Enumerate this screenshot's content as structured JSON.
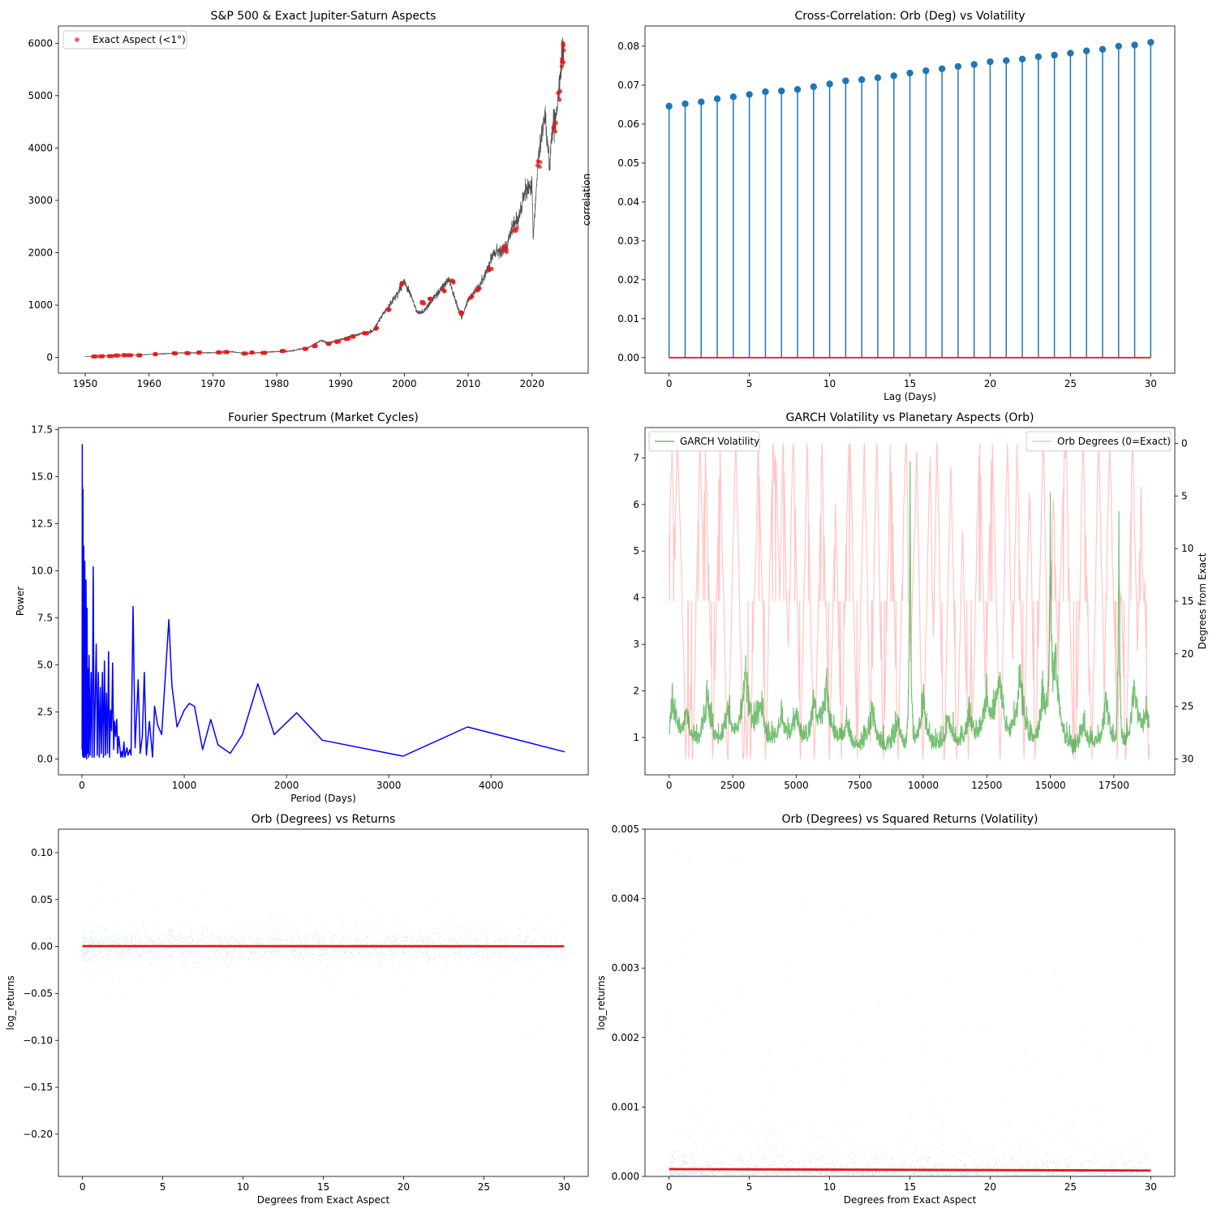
{
  "chart_data": [
    {
      "type": "scatter",
      "title": "S&P 500 & Exact Jupiter-Saturn Aspects",
      "xlabel": "",
      "ylabel": "",
      "xlim": [
        1945.8,
        2028.8
      ],
      "ylim": [
        -300,
        6330
      ],
      "xticks": [
        1950,
        1960,
        1970,
        1980,
        1990,
        2000,
        2010,
        2020
      ],
      "yticks": [
        0,
        1000,
        2000,
        3000,
        4000,
        5000,
        6000
      ],
      "legend": "upper-left",
      "line_series": {
        "name": "",
        "color": "#333333",
        "x": [
          1950,
          1955,
          1960,
          1965,
          1970,
          1973,
          1975,
          1980,
          1982,
          1985,
          1987,
          1988,
          1990,
          1992,
          1995,
          1997,
          1998,
          2000,
          2001,
          2002,
          2003,
          2005,
          2007,
          2008,
          2009,
          2010,
          2012,
          2013,
          2014,
          2015,
          2016,
          2017,
          2018,
          2019,
          2020,
          2020.2,
          2021,
          2022,
          2022.8,
          2023,
          2024,
          2024.5,
          2025
        ],
        "y": [
          17,
          40,
          58,
          88,
          90,
          110,
          75,
          115,
          120,
          190,
          330,
          270,
          340,
          420,
          500,
          900,
          1050,
          1450,
          1200,
          850,
          880,
          1200,
          1500,
          1100,
          750,
          1120,
          1400,
          1700,
          2000,
          2050,
          2100,
          2500,
          2700,
          3200,
          3300,
          2300,
          3800,
          4700,
          3600,
          4200,
          4800,
          5500,
          6000
        ]
      },
      "scatter_series": {
        "name": "Exact Aspect (<1°)",
        "color": "#e31a1c",
        "x": [
          1951.5,
          1952.5,
          1954,
          1955,
          1956,
          1957,
          1958.5,
          1961,
          1964,
          1966,
          1968,
          1971,
          1972,
          1975,
          1976,
          1978,
          1981,
          1984.5,
          1986,
          1988,
          1989.5,
          1991,
          1992,
          1994,
          1995.5,
          1997.5,
          1999.5,
          2003,
          2004,
          2006,
          2007.5,
          2009,
          2010.5,
          2011.5,
          2013.5,
          2015.5,
          2016,
          2017.5,
          2021,
          2023.5,
          2024.2,
          2024.8,
          2025
        ],
        "y": [
          20,
          24,
          26,
          38,
          45,
          44,
          42,
          65,
          80,
          85,
          95,
          98,
          105,
          75,
          95,
          90,
          125,
          165,
          220,
          260,
          300,
          360,
          400,
          460,
          560,
          900,
          1400,
          1050,
          1120,
          1270,
          1450,
          850,
          1150,
          1300,
          1700,
          2100,
          2050,
          2450,
          3700,
          4400,
          5000,
          5600,
          5950
        ]
      }
    },
    {
      "type": "stem",
      "title": "Cross-Correlation: Orb (Deg) vs Volatility",
      "xlabel": "Lag (Days)",
      "ylabel": "correlation",
      "xlim": [
        -1.5,
        31.5
      ],
      "ylim": [
        -0.004,
        0.0852
      ],
      "xticks": [
        0,
        5,
        10,
        15,
        20,
        25,
        30
      ],
      "yticks": [
        0.0,
        0.01,
        0.02,
        0.03,
        0.04,
        0.05,
        0.06,
        0.07,
        0.08
      ],
      "ytick_labels": [
        "0.00",
        "0.01",
        "0.02",
        "0.03",
        "0.04",
        "0.05",
        "0.06",
        "0.07",
        "0.08"
      ],
      "x": [
        0,
        1,
        2,
        3,
        4,
        5,
        6,
        7,
        8,
        9,
        10,
        11,
        12,
        13,
        14,
        15,
        16,
        17,
        18,
        19,
        20,
        21,
        22,
        23,
        24,
        25,
        26,
        27,
        28,
        29,
        30
      ],
      "values": [
        0.0646,
        0.0652,
        0.0657,
        0.0665,
        0.067,
        0.0676,
        0.0683,
        0.0685,
        0.0689,
        0.0696,
        0.0703,
        0.0711,
        0.0714,
        0.0719,
        0.0724,
        0.0731,
        0.0737,
        0.0742,
        0.0748,
        0.0753,
        0.076,
        0.0763,
        0.0767,
        0.0773,
        0.0777,
        0.0782,
        0.0788,
        0.0792,
        0.08,
        0.0803,
        0.081
      ],
      "stem_color": "#1f77b4",
      "baseline_color": "#d62728"
    },
    {
      "type": "line",
      "title": "Fourier Spectrum (Market Cycles)",
      "xlabel": "Period (Days)",
      "ylabel": "Power",
      "xlim": [
        -230,
        4950
      ],
      "ylim": [
        -0.84,
        17.6
      ],
      "xticks": [
        0,
        1000,
        2000,
        3000,
        4000
      ],
      "yticks": [
        0.0,
        2.5,
        5.0,
        7.5,
        10.0,
        12.5,
        15.0,
        17.5
      ],
      "ytick_labels": [
        "0.0",
        "2.5",
        "5.0",
        "7.5",
        "10.0",
        "12.5",
        "15.0",
        "17.5"
      ],
      "color": "#0000ff",
      "x": [
        2,
        3,
        4,
        5,
        6,
        7,
        8,
        10,
        12,
        14,
        16,
        18,
        20,
        22,
        25,
        28,
        30,
        33,
        36,
        40,
        45,
        50,
        55,
        60,
        65,
        70,
        80,
        90,
        100,
        110,
        120,
        130,
        140,
        150,
        160,
        170,
        180,
        190,
        200,
        210,
        220,
        230,
        240,
        250,
        260,
        270,
        280,
        290,
        300,
        310,
        320,
        330,
        340,
        350,
        360,
        380,
        390,
        400,
        410,
        420,
        440,
        450,
        470,
        480,
        500,
        520,
        550,
        570,
        590,
        610,
        630,
        660,
        690,
        710,
        740,
        780,
        850,
        880,
        930,
        1000,
        1050,
        1100,
        1180,
        1260,
        1330,
        1450,
        1570,
        1720,
        1880,
        2100,
        2350,
        3140,
        3770,
        4720
      ],
      "y": [
        0.5,
        16.7,
        1.0,
        14.5,
        0.2,
        12.0,
        1.0,
        14.3,
        0.1,
        9.5,
        0.5,
        11.3,
        0.1,
        7.8,
        0.3,
        10.5,
        0.1,
        5.0,
        0.2,
        9.5,
        0.0,
        8.0,
        0.3,
        4.8,
        0.1,
        5.5,
        0.2,
        4.6,
        0.1,
        10.2,
        0.1,
        3.2,
        6.1,
        0.2,
        4.6,
        0.1,
        3.8,
        0.3,
        4.6,
        0.1,
        5.2,
        0.2,
        3.5,
        0.3,
        5.7,
        0.1,
        2.6,
        1.5,
        5.1,
        0.5,
        2.0,
        1.2,
        2.1,
        0.3,
        1.2,
        0.1,
        0.4,
        0.1,
        0.9,
        0.1,
        0.6,
        0.2,
        0.5,
        0.2,
        8.1,
        0.6,
        4.2,
        0.3,
        1.2,
        4.6,
        0.2,
        2.0,
        0.1,
        2.8,
        1.8,
        1.3,
        7.4,
        3.9,
        1.7,
        2.6,
        2.95,
        2.8,
        0.5,
        2.1,
        0.75,
        0.3,
        1.3,
        4.0,
        1.3,
        2.45,
        1.0,
        0.15,
        1.7,
        0.38
      ]
    },
    {
      "type": "line",
      "title": "GARCH Volatility vs Planetary Aspects (Orb)",
      "xlabel": "",
      "ylabel": "",
      "ylabel_right": "Degrees from Exact",
      "xlim": [
        -950,
        19900
      ],
      "ylim": [
        0.2,
        7.65
      ],
      "ylim_right": [
        31.5,
        -1.5
      ],
      "xticks": [
        0,
        2500,
        5000,
        7500,
        10000,
        12500,
        15000,
        17500
      ],
      "yticks": [
        1,
        2,
        3,
        4,
        5,
        6,
        7
      ],
      "yticks_right": [
        0,
        5,
        10,
        15,
        20,
        25,
        30
      ],
      "legend_left": "GARCH Volatility",
      "legend_right": "Orb Degrees (0=Exact)",
      "n_points": 18900,
      "volatility_color": "#2ca02c",
      "orb_color": "#ff9896",
      "volatility_spikes": [
        {
          "x": 150,
          "y": 2.0
        },
        {
          "x": 700,
          "y": 1.6
        },
        {
          "x": 1500,
          "y": 2.2
        },
        {
          "x": 2300,
          "y": 1.8
        },
        {
          "x": 3000,
          "y": 2.7
        },
        {
          "x": 3600,
          "y": 1.9
        },
        {
          "x": 4400,
          "y": 1.6
        },
        {
          "x": 5000,
          "y": 1.7
        },
        {
          "x": 5700,
          "y": 1.8
        },
        {
          "x": 6200,
          "y": 2.3
        },
        {
          "x": 7000,
          "y": 1.5
        },
        {
          "x": 8000,
          "y": 1.8
        },
        {
          "x": 9000,
          "y": 1.4
        },
        {
          "x": 9480,
          "y": 7.3
        },
        {
          "x": 10000,
          "y": 1.9
        },
        {
          "x": 11000,
          "y": 1.6
        },
        {
          "x": 11800,
          "y": 1.7
        },
        {
          "x": 12500,
          "y": 2.0
        },
        {
          "x": 13000,
          "y": 2.6
        },
        {
          "x": 13800,
          "y": 2.7
        },
        {
          "x": 14700,
          "y": 1.9
        },
        {
          "x": 15000,
          "y": 5.4
        },
        {
          "x": 15200,
          "y": 3.1
        },
        {
          "x": 16300,
          "y": 1.4
        },
        {
          "x": 17200,
          "y": 2.0
        },
        {
          "x": 17700,
          "y": 6.3
        },
        {
          "x": 18300,
          "y": 2.2
        },
        {
          "x": 18800,
          "y": 1.5
        }
      ]
    },
    {
      "type": "scatter",
      "title": "Orb (Degrees) vs Returns",
      "xlabel": "Degrees from Exact Aspect",
      "ylabel": "log_returns",
      "xlim": [
        -1.5,
        31.5
      ],
      "ylim": [
        -0.245,
        0.125
      ],
      "xticks": [
        0,
        5,
        10,
        15,
        20,
        25,
        30
      ],
      "yticks": [
        -0.2,
        -0.15,
        -0.1,
        -0.05,
        0.0,
        0.05,
        0.1
      ],
      "ytick_labels": [
        "−0.20",
        "−0.15",
        "−0.10",
        "−0.05",
        "0.00",
        "0.05",
        "0.10"
      ],
      "n_points": 18900,
      "point_color": "#1f77b4",
      "fit_line": {
        "x": [
          0,
          30
        ],
        "y": [
          0.0004,
          0.0003
        ],
        "color": "#e31a1c"
      }
    },
    {
      "type": "scatter",
      "title": "Orb (Degrees) vs Squared Returns (Volatility)",
      "xlabel": "Degrees from Exact Aspect",
      "ylabel": "log_returns",
      "xlim": [
        -1.5,
        31.5
      ],
      "ylim": [
        0,
        0.005
      ],
      "xticks": [
        0,
        5,
        10,
        15,
        20,
        25,
        30
      ],
      "yticks": [
        0.0,
        0.001,
        0.002,
        0.003,
        0.004,
        0.005
      ],
      "ytick_labels": [
        "0.000",
        "0.001",
        "0.002",
        "0.003",
        "0.004",
        "0.005"
      ],
      "n_points": 18900,
      "point_color": "#1f77b4",
      "fit_line": {
        "x": [
          0,
          30
        ],
        "y": [
          0.000105,
          8.5e-05
        ],
        "color": "#e31a1c"
      }
    }
  ]
}
